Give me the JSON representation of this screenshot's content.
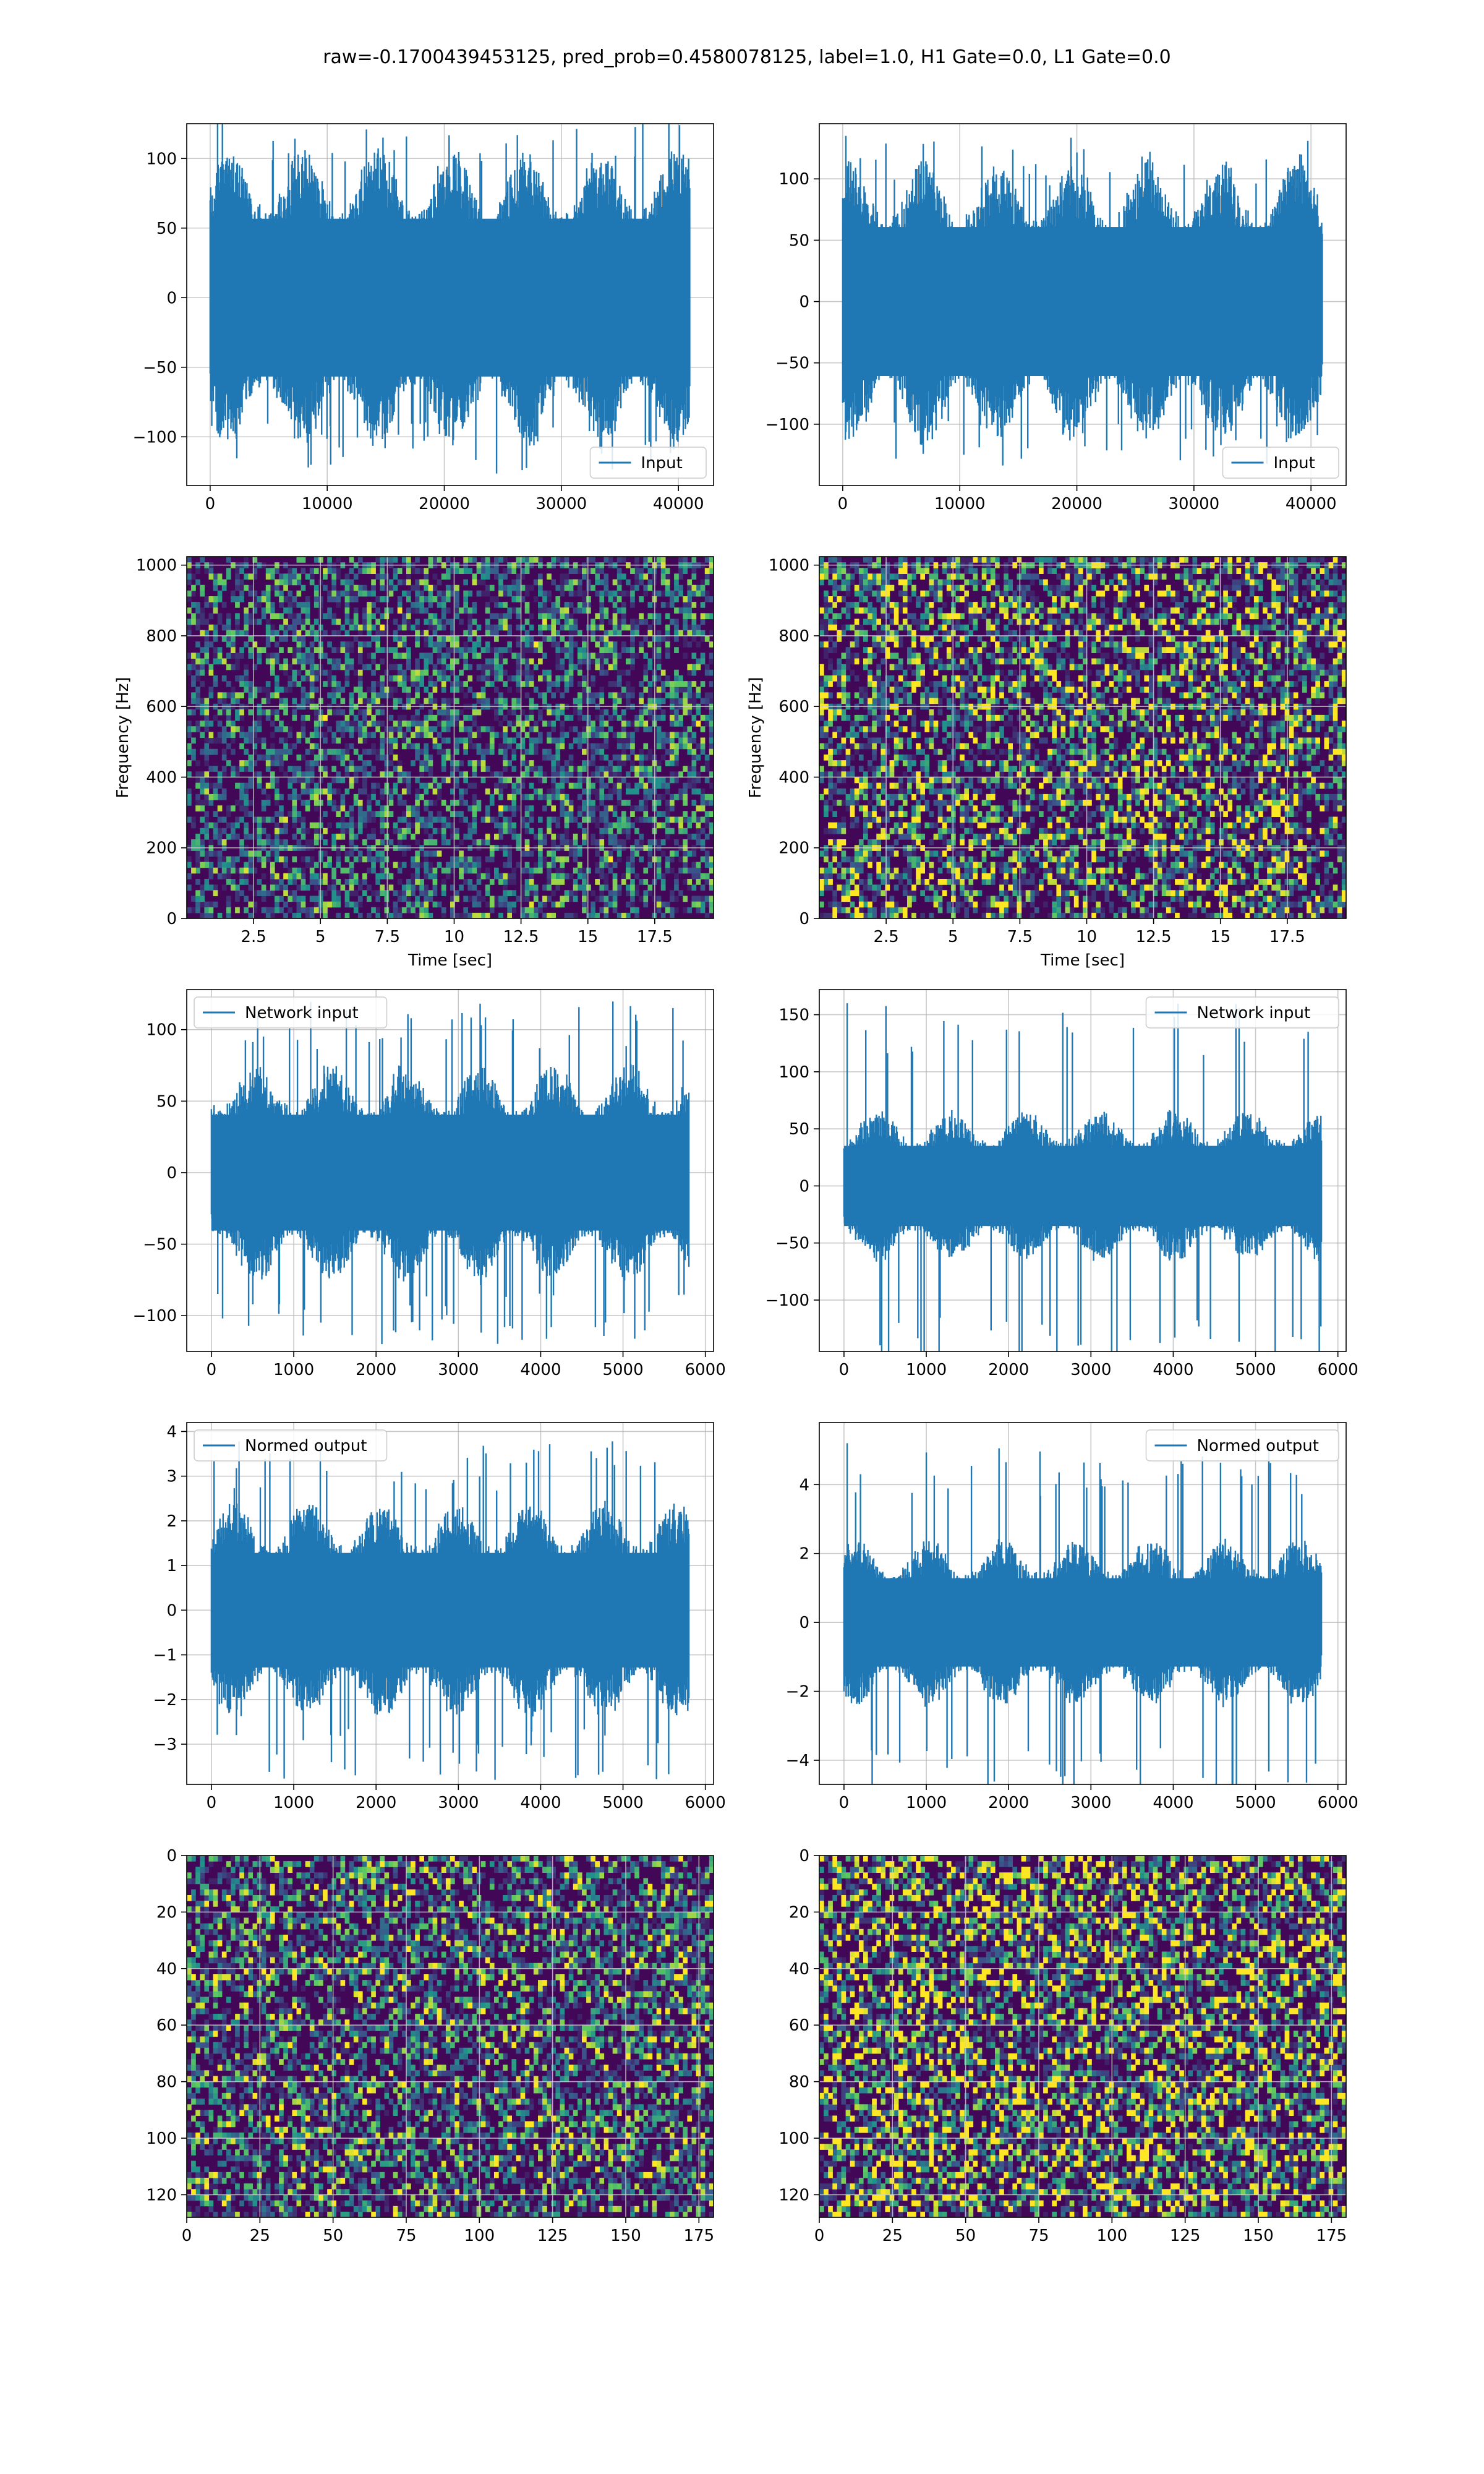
{
  "figure": {
    "title": "raw=-0.1700439453125, pred_prob=0.4580078125, label=1.0, H1 Gate=0.0, L1 Gate=0.0"
  },
  "colors": {
    "line": "#1f77b4",
    "grid": "#b0b0b0",
    "cmap_low": "#440154",
    "cmap_mid": "#21918c",
    "cmap_high": "#fde725"
  },
  "chart_data": [
    {
      "id": "input-h1",
      "type": "line",
      "col": 0,
      "row": 0,
      "series": [
        {
          "name": "Input",
          "n": 40960,
          "amp": 42,
          "spike": 128
        }
      ],
      "xlim": [
        -2000,
        43000
      ],
      "ylim": [
        -135,
        125
      ],
      "xticks": [
        0,
        10000,
        20000,
        30000,
        40000
      ],
      "yticks": [
        -100,
        -50,
        0,
        50,
        100
      ],
      "legend": "lower right",
      "xlabel": "",
      "ylabel": ""
    },
    {
      "id": "input-l1",
      "type": "line",
      "col": 1,
      "row": 0,
      "series": [
        {
          "name": "Input",
          "n": 40960,
          "amp": 45,
          "spike": 135
        }
      ],
      "xlim": [
        -2000,
        43000
      ],
      "ylim": [
        -150,
        145
      ],
      "xticks": [
        0,
        10000,
        20000,
        30000,
        40000
      ],
      "yticks": [
        -100,
        -50,
        0,
        50,
        100
      ],
      "legend": "lower right",
      "xlabel": "",
      "ylabel": ""
    },
    {
      "id": "spectrogram-h1",
      "type": "heatmap",
      "col": 0,
      "row": 1,
      "xlim": [
        0,
        19.7
      ],
      "ylim": [
        0,
        1024
      ],
      "xticks": [
        2.5,
        5.0,
        7.5,
        10.0,
        12.5,
        15.0,
        17.5
      ],
      "yticks": [
        0,
        200,
        400,
        600,
        800,
        1000
      ],
      "xlabel": "Time [sec]",
      "ylabel": "Frequency [Hz]",
      "brightness": 0.22
    },
    {
      "id": "spectrogram-l1",
      "type": "heatmap",
      "col": 1,
      "row": 1,
      "xlim": [
        0,
        19.7
      ],
      "ylim": [
        0,
        1024
      ],
      "xticks": [
        2.5,
        5.0,
        7.5,
        10.0,
        12.5,
        15.0,
        17.5
      ],
      "yticks": [
        0,
        200,
        400,
        600,
        800,
        1000
      ],
      "xlabel": "Time [sec]",
      "ylabel": "Frequency [Hz]",
      "brightness": 0.32
    },
    {
      "id": "network-input-h1",
      "type": "line",
      "col": 0,
      "row": 2,
      "series": [
        {
          "name": "Network input",
          "n": 5800,
          "amp": 30,
          "spike": 120
        }
      ],
      "xlim": [
        -300,
        6100
      ],
      "ylim": [
        -125,
        128
      ],
      "xticks": [
        0,
        1000,
        2000,
        3000,
        4000,
        5000,
        6000
      ],
      "yticks": [
        -100,
        -50,
        0,
        50,
        100
      ],
      "legend": "upper left",
      "xlabel": "",
      "ylabel": ""
    },
    {
      "id": "network-input-l1",
      "type": "line",
      "col": 1,
      "row": 2,
      "series": [
        {
          "name": "Network input",
          "n": 5800,
          "amp": 26,
          "spike": 160
        }
      ],
      "xlim": [
        -300,
        6100
      ],
      "ylim": [
        -145,
        172
      ],
      "xticks": [
        0,
        1000,
        2000,
        3000,
        4000,
        5000,
        6000
      ],
      "yticks": [
        -100,
        -50,
        0,
        50,
        100,
        150
      ],
      "legend": "upper right",
      "xlabel": "",
      "ylabel": ""
    },
    {
      "id": "normed-output-h1",
      "type": "line",
      "col": 0,
      "row": 3,
      "series": [
        {
          "name": "Normed output",
          "n": 5800,
          "amp": 0.95,
          "spike": 3.8
        }
      ],
      "xlim": [
        -300,
        6100
      ],
      "ylim": [
        -3.9,
        4.2
      ],
      "xticks": [
        0,
        1000,
        2000,
        3000,
        4000,
        5000,
        6000
      ],
      "yticks": [
        -3,
        -2,
        -1,
        0,
        1,
        2,
        3,
        4
      ],
      "legend": "upper left",
      "xlabel": "",
      "ylabel": ""
    },
    {
      "id": "normed-output-l1",
      "type": "line",
      "col": 1,
      "row": 3,
      "series": [
        {
          "name": "Normed output",
          "n": 5800,
          "amp": 0.95,
          "spike": 5.2
        }
      ],
      "xlim": [
        -300,
        6100
      ],
      "ylim": [
        -4.7,
        5.8
      ],
      "xticks": [
        0,
        1000,
        2000,
        3000,
        4000,
        5000,
        6000
      ],
      "yticks": [
        -4,
        -2,
        0,
        2,
        4
      ],
      "legend": "upper right",
      "xlabel": "",
      "ylabel": ""
    },
    {
      "id": "network-image-h1",
      "type": "heatmap",
      "col": 0,
      "row": 4,
      "xlim": [
        0,
        180
      ],
      "ylim": [
        128,
        0
      ],
      "origin": "upper",
      "xticks": [
        0,
        25,
        50,
        75,
        100,
        125,
        150,
        175
      ],
      "yticks": [
        0,
        20,
        40,
        60,
        80,
        100,
        120
      ],
      "xlabel": "",
      "ylabel": "",
      "brightness": 0.26
    },
    {
      "id": "network-image-l1",
      "type": "heatmap",
      "col": 1,
      "row": 4,
      "xlim": [
        0,
        180
      ],
      "ylim": [
        128,
        0
      ],
      "origin": "upper",
      "xticks": [
        0,
        25,
        50,
        75,
        100,
        125,
        150,
        175
      ],
      "yticks": [
        0,
        20,
        40,
        60,
        80,
        100,
        120
      ],
      "xlabel": "",
      "ylabel": "",
      "brightness": 0.36
    }
  ]
}
